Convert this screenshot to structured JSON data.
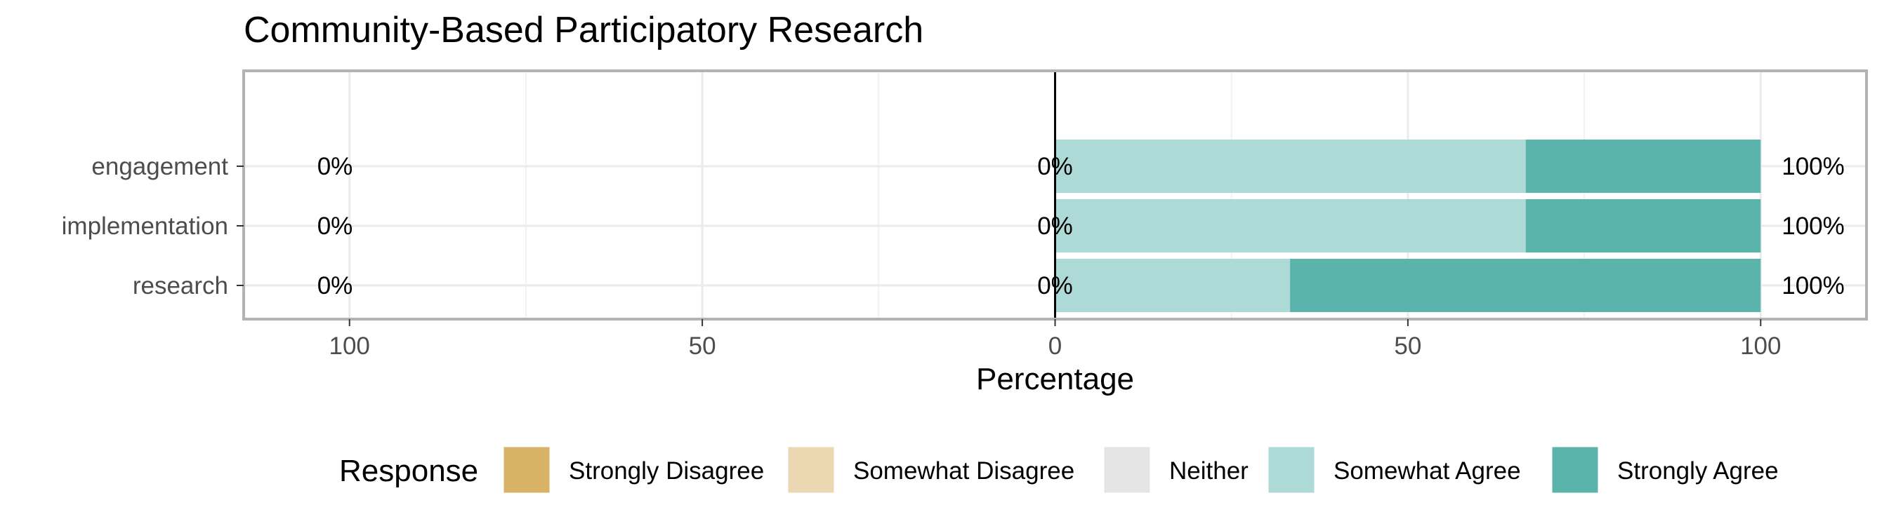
{
  "chart_data": {
    "type": "bar",
    "orientation": "horizontal-diverging",
    "title": "Community-Based Participatory Research",
    "xlabel": "Percentage",
    "ylabel": "",
    "xlim": [
      -115,
      115
    ],
    "x_ticks": [
      -100,
      -50,
      0,
      50,
      100
    ],
    "x_tick_labels": [
      "100",
      "50",
      "0",
      "50",
      "100"
    ],
    "categories": [
      "engagement",
      "implementation",
      "research"
    ],
    "series": [
      {
        "name": "Strongly Disagree",
        "color": "#D8B365",
        "values": [
          0,
          0,
          0
        ]
      },
      {
        "name": "Somewhat Disagree",
        "color": "#EBD8B2",
        "values": [
          0,
          0,
          0
        ]
      },
      {
        "name": "Neither",
        "color": "#E5E5E5",
        "values": [
          0,
          0,
          0
        ]
      },
      {
        "name": "Somewhat Agree",
        "color": "#ADD9D6",
        "values": [
          66.7,
          66.7,
          33.3
        ]
      },
      {
        "name": "Strongly Agree",
        "color": "#5AB4AC",
        "values": [
          33.3,
          33.3,
          66.7
        ]
      }
    ],
    "left_labels": [
      "0%",
      "0%",
      "0%"
    ],
    "center_labels": [
      "0%",
      "0%",
      "0%"
    ],
    "right_labels": [
      "100%",
      "100%",
      "100%"
    ],
    "legend": {
      "title": "Response",
      "position": "bottom"
    },
    "grid": true
  }
}
